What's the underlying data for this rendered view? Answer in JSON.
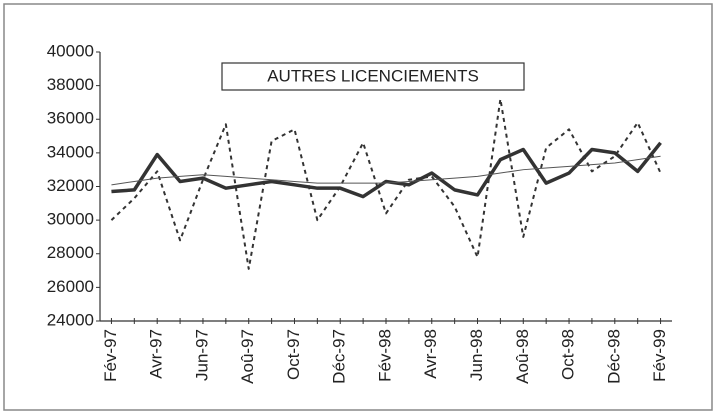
{
  "chart_data": {
    "type": "line",
    "title": "AUTRES LICENCIEMENTS",
    "categories": [
      "Fév-97",
      null,
      "Avr-97",
      null,
      "Jun-97",
      null,
      "Aoû-97",
      null,
      "Oct-97",
      null,
      "Déc-97",
      null,
      "Fév-98",
      null,
      "Avr-98",
      null,
      "Jun-98",
      null,
      "Aoû-98",
      null,
      "Oct-98",
      null,
      "Déc-98",
      null,
      "Fév-99"
    ],
    "series": [
      {
        "color": "#333333",
        "style": "solid-thick",
        "values": [
          31700,
          31800,
          33900,
          32300,
          32500,
          31900,
          32100,
          32300,
          32100,
          31900,
          31900,
          31400,
          32300,
          32100,
          32800,
          31800,
          31500,
          33600,
          34200,
          32200,
          32800,
          34200,
          34000,
          32900,
          34600
        ]
      },
      {
        "color": "#333333",
        "style": "dashed",
        "values": [
          30000,
          31300,
          32900,
          28800,
          32400,
          35700,
          27100,
          34700,
          35400,
          30000,
          32000,
          34600,
          30400,
          32400,
          32600,
          30800,
          27800,
          37200,
          29000,
          34300,
          35400,
          32900,
          33800,
          35800,
          32800
        ]
      },
      {
        "color": "#555555",
        "style": "solid-thin",
        "values": [
          32100,
          32300,
          32500,
          32600,
          32700,
          32600,
          32500,
          32400,
          32300,
          32200,
          32200,
          32200,
          32200,
          32300,
          32400,
          32500,
          32600,
          32800,
          33000,
          33100,
          33200,
          33300,
          33400,
          33600,
          33800
        ]
      }
    ],
    "ylim": [
      24000,
      40000
    ],
    "yticks": [
      24000,
      26000,
      28000,
      30000,
      32000,
      34000,
      36000,
      38000,
      40000
    ]
  }
}
